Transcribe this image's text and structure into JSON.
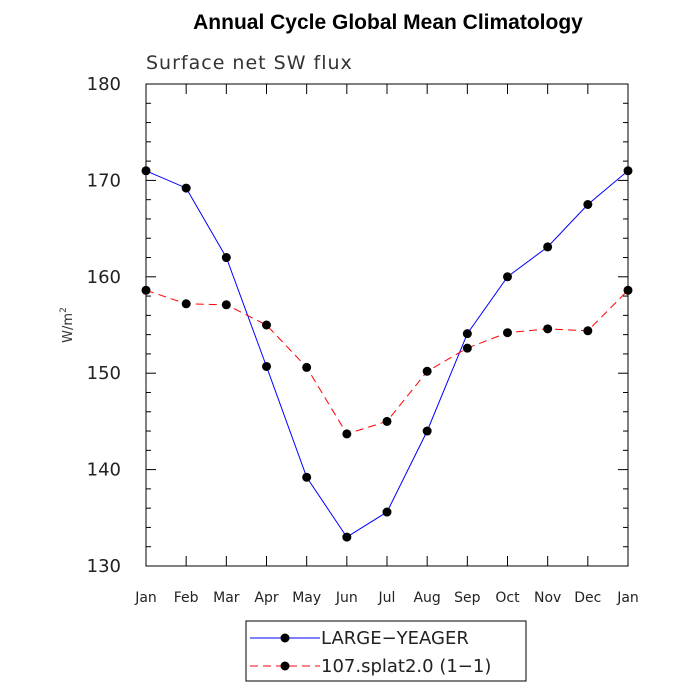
{
  "chart_data": {
    "type": "line",
    "title": "Annual Cycle Global Mean Climatology",
    "subtitle": "Surface net SW flux",
    "ylabel": "W/m",
    "ylabel_superscript": "2",
    "ylim": [
      130,
      180
    ],
    "yticks": [
      130,
      140,
      150,
      160,
      170,
      180
    ],
    "categories": [
      "Jan",
      "Feb",
      "Mar",
      "Apr",
      "May",
      "Jun",
      "Jul",
      "Aug",
      "Sep",
      "Oct",
      "Nov",
      "Dec",
      "Jan"
    ],
    "series": [
      {
        "name": "LARGE−YEAGER",
        "color": "#0000ff",
        "dash": "solid",
        "values": [
          171.0,
          169.2,
          162.0,
          150.7,
          139.2,
          133.0,
          135.6,
          144.0,
          154.1,
          160.0,
          163.1,
          167.5,
          171.0
        ]
      },
      {
        "name": "107.splat2.0 (1−1)",
        "color": "#ff0000",
        "dash": "dashed",
        "values": [
          158.6,
          157.2,
          157.1,
          155.0,
          150.6,
          143.7,
          145.0,
          150.2,
          152.6,
          154.2,
          154.6,
          154.4,
          158.6
        ]
      }
    ],
    "grid": false,
    "legend_position": "bottom-center"
  }
}
